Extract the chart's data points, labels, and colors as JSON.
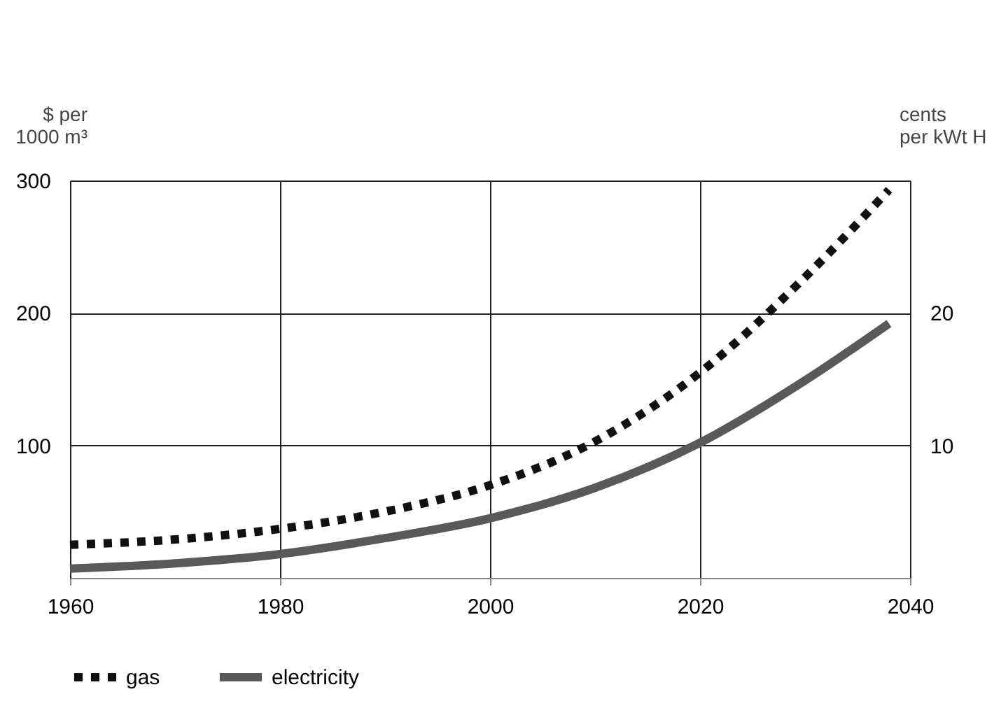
{
  "chart_data": {
    "type": "line",
    "ylabel": "$ per\n1000 m³",
    "y2label": "cents\nper kWt H",
    "x": [
      1960,
      1970,
      1980,
      1990,
      2000,
      2010,
      2020,
      2030,
      2038
    ],
    "series": [
      {
        "name": "gas",
        "color": "#111111",
        "line_style": "dotted",
        "values": [
          25,
          29,
          37,
          50,
          70,
          103,
          155,
          227,
          293
        ]
      },
      {
        "name": "electricity",
        "color": "#595959",
        "line_style": "solid",
        "axis": "y2",
        "values": [
          0.7,
          1.1,
          1.8,
          3.0,
          4.5,
          6.8,
          10.2,
          14.9,
          19.2
        ]
      }
    ],
    "xlim": [
      1960,
      2040
    ],
    "xticks": [
      1960,
      1980,
      2000,
      2020,
      2040
    ],
    "ylim": [
      0,
      300
    ],
    "yticks": [
      100,
      200,
      300
    ],
    "y2lim": [
      0,
      30
    ],
    "y2ticks": [
      10,
      20
    ],
    "grid": true,
    "legend": "bottom"
  }
}
